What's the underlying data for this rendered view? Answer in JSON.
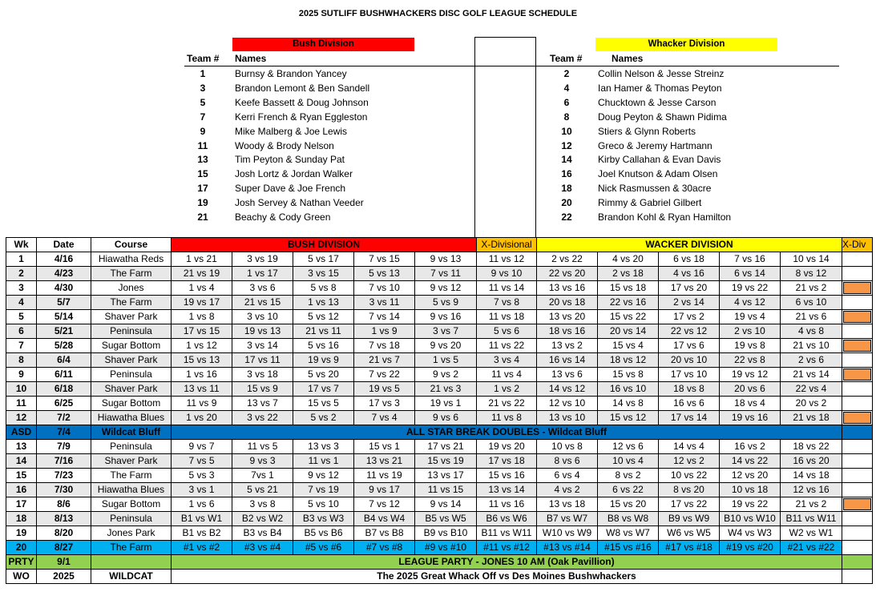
{
  "title": "2025 SUTLIFF BUSHWHACKERS DISC GOLF LEAGUE SCHEDULE",
  "bush": {
    "label": "Bush Division",
    "team_header": "Team #",
    "names_header": "Names",
    "teams": [
      {
        "num": "1",
        "name": "Burnsy & Brandon Yancey"
      },
      {
        "num": "3",
        "name": "Brandon Lemont & Ben Sandell"
      },
      {
        "num": "5",
        "name": "Keefe Bassett & Doug Johnson"
      },
      {
        "num": "7",
        "name": "Kerri French & Ryan Eggleston"
      },
      {
        "num": "9",
        "name": "Mike Malberg & Joe Lewis"
      },
      {
        "num": "11",
        "name": "Woody & Brody Nelson"
      },
      {
        "num": "13",
        "name": "Tim Peyton & Sunday Pat"
      },
      {
        "num": "15",
        "name": "Josh Lortz & Jordan Walker"
      },
      {
        "num": "17",
        "name": "Super Dave & Joe French"
      },
      {
        "num": "19",
        "name": "Josh Servey & Nathan Veeder"
      },
      {
        "num": "21",
        "name": "Beachy & Cody Green"
      }
    ]
  },
  "whacker": {
    "label": "Whacker Division",
    "team_header": "Team #",
    "names_header": "Names",
    "teams": [
      {
        "num": "2",
        "name": "Collin Nelson & Jesse Streinz"
      },
      {
        "num": "4",
        "name": "Ian Hamer & Thomas Peyton"
      },
      {
        "num": "6",
        "name": "Chucktown & Jesse Carson"
      },
      {
        "num": "8",
        "name": "Doug Peyton & Shawn Pidima"
      },
      {
        "num": "10",
        "name": "Stiers & Glynn Roberts"
      },
      {
        "num": "12",
        "name": "Greco & Jeremy Hartmann"
      },
      {
        "num": "14",
        "name": "Kirby Callahan & Evan Davis"
      },
      {
        "num": "16",
        "name": "Joel Knutson & Adam Olsen"
      },
      {
        "num": "18",
        "name": "Nick Rasmussen & 30acre"
      },
      {
        "num": "20",
        "name": "Rimmy & Gabriel Gilbert"
      },
      {
        "num": "22",
        "name": "Brandon Kohl & Ryan Hamilton"
      }
    ]
  },
  "schedule": {
    "headers": {
      "wk": "Wk",
      "date": "Date",
      "course": "Course",
      "bush": "BUSH DIVISION",
      "xdiv": "X-Divisional",
      "wacker": "WACKER DIVISION",
      "xdiv_short": "X-Div"
    },
    "colors": {
      "bush": "#ff0000",
      "xdiv": "#ffc000",
      "wacker": "#ffff00",
      "asd": "#0070c0",
      "blue": "#00b0f0",
      "green": "#92d050",
      "orange": "#f79646"
    },
    "rows": [
      {
        "wk": "1",
        "date": "4/16",
        "course": "Hiawatha Reds",
        "games": [
          "1 vs 21",
          "3 vs 19",
          "5 vs 17",
          "7 vs 15",
          "9 vs 13",
          "11 vs 12",
          "2 vs 22",
          "4 vs 20",
          "6 vs 18",
          "7 vs 16",
          "10 vs 14"
        ],
        "style": "white",
        "xdiv": false
      },
      {
        "wk": "2",
        "date": "4/23",
        "course": "The Farm",
        "games": [
          "21 vs 19",
          "1 vs 17",
          "3 vs 15",
          "5 vs 13",
          "7 vs 11",
          "9 vs 10",
          "22 vs 20",
          "2 vs 18",
          "4 vs 16",
          "6 vs 14",
          "8 vs 12"
        ],
        "style": "gray",
        "xdiv": false
      },
      {
        "wk": "3",
        "date": "4/30",
        "course": "Jones",
        "games": [
          "1 vs 4",
          "3 vs 6",
          "5 vs 8",
          "7 vs 10",
          "9 vs 12",
          "11 vs 14",
          "13 vs 16",
          "15 vs 18",
          "17 vs 20",
          "19 vs 22",
          "21 vs 2"
        ],
        "style": "white",
        "xdiv": true
      },
      {
        "wk": "4",
        "date": "5/7",
        "course": "The Farm",
        "games": [
          "19 vs 17",
          "21 vs 15",
          "1 vs 13",
          "3 vs 11",
          "5 vs 9",
          "7 vs 8",
          "20 vs 18",
          "22 vs 16",
          "2 vs 14",
          "4 vs 12",
          "6 vs 10"
        ],
        "style": "gray",
        "xdiv": false
      },
      {
        "wk": "5",
        "date": "5/14",
        "course": "Shaver Park",
        "games": [
          "1 vs 8",
          "3 vs 10",
          "5 vs 12",
          "7 vs 14",
          "9 vs 16",
          "11 vs 18",
          "13 vs 20",
          "15 vs 22",
          "17 vs 2",
          "19 vs 4",
          "21 vs 6"
        ],
        "style": "white",
        "xdiv": true
      },
      {
        "wk": "6",
        "date": "5/21",
        "course": "Peninsula",
        "games": [
          "17 vs 15",
          "19 vs 13",
          "21 vs 11",
          "1 vs 9",
          "3 vs 7",
          "5 vs 6",
          "18 vs 16",
          "20 vs 14",
          "22 vs 12",
          "2 vs 10",
          "4 vs 8"
        ],
        "style": "gray",
        "xdiv": false
      },
      {
        "wk": "7",
        "date": "5/28",
        "course": "Sugar Bottom",
        "games": [
          "1 vs 12",
          "3 vs 14",
          "5 vs 16",
          "7 vs 18",
          "9 vs 20",
          "11 vs 22",
          "13 vs 2",
          "15 vs 4",
          "17 vs 6",
          "19 vs 8",
          "21 vs 10"
        ],
        "style": "white",
        "xdiv": true
      },
      {
        "wk": "8",
        "date": "6/4",
        "course": "Shaver Park",
        "games": [
          "15 vs 13",
          "17 vs 11",
          "19 vs 9",
          "21 vs 7",
          "1 vs 5",
          "3 vs 4",
          "16 vs 14",
          "18 vs 12",
          "20 vs 10",
          "22 vs 8",
          "2 vs 6"
        ],
        "style": "gray",
        "xdiv": false
      },
      {
        "wk": "9",
        "date": "6/11",
        "course": "Peninsula",
        "games": [
          "1 vs 16",
          "3 vs 18",
          "5 vs 20",
          "7 vs 22",
          "9 vs 2",
          "11 vs 4",
          "13 vs 6",
          "15 vs 8",
          "17 vs 10",
          "19 vs 12",
          "21 vs 14"
        ],
        "style": "white",
        "xdiv": true
      },
      {
        "wk": "10",
        "date": "6/18",
        "course": "Shaver Park",
        "games": [
          "13 vs 11",
          "15 vs 9",
          "17 vs 7",
          "19 vs 5",
          "21 vs 3",
          "1 vs 2",
          "14 vs 12",
          "16 vs 10",
          "18 vs 8",
          "20 vs 6",
          "22 vs 4"
        ],
        "style": "gray",
        "xdiv": false
      },
      {
        "wk": "11",
        "date": "6/25",
        "course": "Sugar Bottom",
        "games": [
          "11 vs 9",
          "13 vs 7",
          "15 vs 5",
          "17 vs 3",
          "19 vs 1",
          "21 vs 22",
          "12 vs 10",
          "14 vs 8",
          "16 vs 6",
          "18 vs 4",
          "20 vs 2"
        ],
        "style": "white",
        "xdiv": false
      },
      {
        "wk": "12",
        "date": "7/2",
        "course": "Hiawatha Blues",
        "games": [
          "1 vs 20",
          "3 vs 22",
          "5 vs 2",
          "7 vs 4",
          "9 vs 6",
          "11 vs 8",
          "13 vs 10",
          "15 vs 12",
          "17 vs 14",
          "19 vs 16",
          "21 vs 18"
        ],
        "style": "gray",
        "xdiv": true
      },
      {
        "wk": "13",
        "date": "7/9",
        "course": "Peninsula",
        "games": [
          "9 vs 7",
          "11 vs 5",
          "13 vs 3",
          "15 vs 1",
          "17 vs 21",
          "19 vs 20",
          "10 vs 8",
          "12 vs 6",
          "14 vs 4",
          "16 vs 2",
          "18 vs 22"
        ],
        "style": "white",
        "xdiv": false
      },
      {
        "wk": "14",
        "date": "7/16",
        "course": "Shaver Park",
        "games": [
          "7 vs 5",
          "9 vs 3",
          "11 vs 1",
          "13 vs 21",
          "15 vs 19",
          "17 vs 18",
          "8 vs 6",
          "10 vs 4",
          "12 vs 2",
          "14 vs 22",
          "16 vs 20"
        ],
        "style": "gray",
        "xdiv": false
      },
      {
        "wk": "15",
        "date": "7/23",
        "course": "The Farm",
        "games": [
          "5 vs 3",
          "7vs 1",
          "9 vs 12",
          "11 vs 19",
          "13 vs 17",
          "15 vs 16",
          "6 vs 4",
          "8 vs 2",
          "10 vs 22",
          "12 vs 20",
          "14 vs 18"
        ],
        "style": "white",
        "xdiv": false
      },
      {
        "wk": "16",
        "date": "7/30",
        "course": "Hiawatha Blues",
        "games": [
          "3 vs 1",
          "5 vs 21",
          "7 vs 19",
          "9 vs 17",
          "11 vs 15",
          "13 vs 14",
          "4 vs 2",
          "6 vs 22",
          "8 vs 20",
          "10 vs 18",
          "12 vs 16"
        ],
        "style": "gray",
        "xdiv": false
      },
      {
        "wk": "17",
        "date": "8/6",
        "course": "Sugar Bottom",
        "games": [
          "1 vs 6",
          "3 vs 8",
          "5 vs 10",
          "7 vs 12",
          "9 vs 14",
          "11 vs 16",
          "13 vs 18",
          "15 vs 20",
          "17 vs 22",
          "19 vs 22",
          "21 vs 2"
        ],
        "style": "white",
        "xdiv": true
      },
      {
        "wk": "18",
        "date": "8/13",
        "course": "Peninsula",
        "games": [
          "B1 vs W1",
          "B2 vs W2",
          "B3 vs W3",
          "B4 vs W4",
          "B5 vs W5",
          "B6 vs W6",
          "B7 vs W7",
          "B8 vs W8",
          "B9 vs W9",
          "B10 vs W10",
          "B11 vs W11"
        ],
        "style": "gray",
        "xdiv": false
      },
      {
        "wk": "19",
        "date": "8/20",
        "course": "Jones Park",
        "games": [
          "B1 vs B2",
          "B3 vs B4",
          "B5 vs B6",
          "B7 vs B8",
          "B9 vs B10",
          "B11 vs W11",
          "W10 vs W9",
          "W8 vs W7",
          "W6 vs W5",
          "W4 vs W3",
          "W2 vs W1"
        ],
        "style": "white",
        "xdiv": false
      },
      {
        "wk": "20",
        "date": "8/27",
        "course": "The Farm",
        "games": [
          "#1 vs #2",
          "#3 vs #4",
          "#5 vs #6",
          "#7 vs #8",
          "#9 vs #10",
          "#11 vs #12",
          "#13 vs #14",
          "#15 vs #16",
          "#17 vs #18",
          "#19 vs #20",
          "#21 vs #22"
        ],
        "style": "blue",
        "xdiv": false
      }
    ],
    "asd": {
      "wk": "ASD",
      "date": "7/4",
      "course": "Wildcat Bluff",
      "text": "ALL STAR BREAK DOUBLES - Wildcat Bluff"
    },
    "party": {
      "wk": "PRTY",
      "date": "9/1",
      "course": "",
      "text": "LEAGUE PARTY - JONES 10 AM (Oak Pavillion)"
    },
    "wo": {
      "wk": "WO",
      "date": "2025",
      "course": "WILDCAT",
      "text": "The 2025 Great Whack Off vs Des Moines Bushwhackers"
    }
  }
}
